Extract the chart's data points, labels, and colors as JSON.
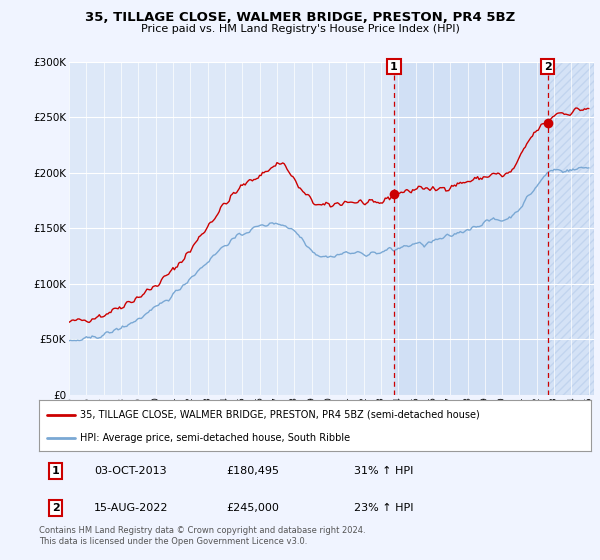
{
  "title": "35, TILLAGE CLOSE, WALMER BRIDGE, PRESTON, PR4 5BZ",
  "subtitle": "Price paid vs. HM Land Registry's House Price Index (HPI)",
  "background_color": "#f0f4ff",
  "plot_bg_color": "#dde8f8",
  "ylim": [
    0,
    300000
  ],
  "yticks": [
    0,
    50000,
    100000,
    150000,
    200000,
    250000,
    300000
  ],
  "ytick_labels": [
    "£0",
    "£50K",
    "£100K",
    "£150K",
    "£200K",
    "£250K",
    "£300K"
  ],
  "xlim_start": 1995.0,
  "xlim_end": 2025.3,
  "xtick_years": [
    1995,
    1996,
    1997,
    1998,
    1999,
    2000,
    2001,
    2002,
    2003,
    2004,
    2005,
    2006,
    2007,
    2008,
    2009,
    2010,
    2011,
    2012,
    2013,
    2014,
    2015,
    2016,
    2017,
    2018,
    2019,
    2020,
    2021,
    2022,
    2023,
    2024,
    2025
  ],
  "marker1_x": 2013.75,
  "marker2_x": 2022.62,
  "marker1_y": 180495,
  "marker2_y": 245000,
  "marker1_label": "1",
  "marker2_label": "2",
  "legend_line1": "35, TILLAGE CLOSE, WALMER BRIDGE, PRESTON, PR4 5BZ (semi-detached house)",
  "legend_line2": "HPI: Average price, semi-detached house, South Ribble",
  "table_row1": [
    "1",
    "03-OCT-2013",
    "£180,495",
    "31% ↑ HPI"
  ],
  "table_row2": [
    "2",
    "15-AUG-2022",
    "£245,000",
    "23% ↑ HPI"
  ],
  "footer": "Contains HM Land Registry data © Crown copyright and database right 2024.\nThis data is licensed under the Open Government Licence v3.0.",
  "red_color": "#cc0000",
  "blue_color": "#7aa8d4",
  "shade_color": "#ccddf5"
}
